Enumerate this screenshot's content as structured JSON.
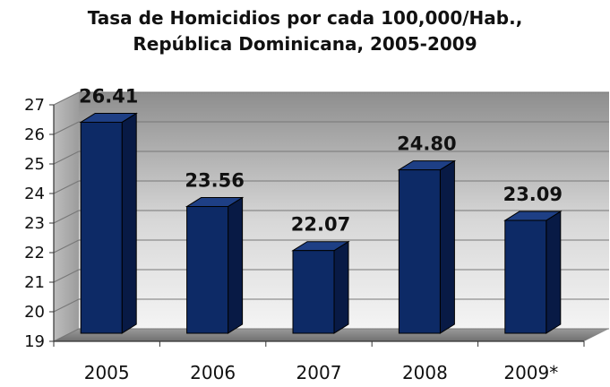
{
  "chart_data": {
    "type": "bar",
    "title_line1": "Tasa de Homicidios por cada 100,000/Hab.,",
    "title_line2": "República Dominicana, 2005-2009",
    "categories": [
      "2005",
      "2006",
      "2007",
      "2008",
      "2009*"
    ],
    "values": [
      26.41,
      23.56,
      22.07,
      24.8,
      23.09
    ],
    "value_labels": [
      "26.41",
      "23.56",
      "22.07",
      "24.80",
      "23.09"
    ],
    "ylim": [
      19,
      27
    ],
    "yticks": [
      "19",
      "20",
      "21",
      "22",
      "23",
      "24",
      "25",
      "26",
      "27"
    ],
    "grid": true,
    "style": "3d-column",
    "bar_color": "#0d2a66",
    "bar_side_color": "#081a45",
    "bar_top_color": "#1e3f85"
  }
}
